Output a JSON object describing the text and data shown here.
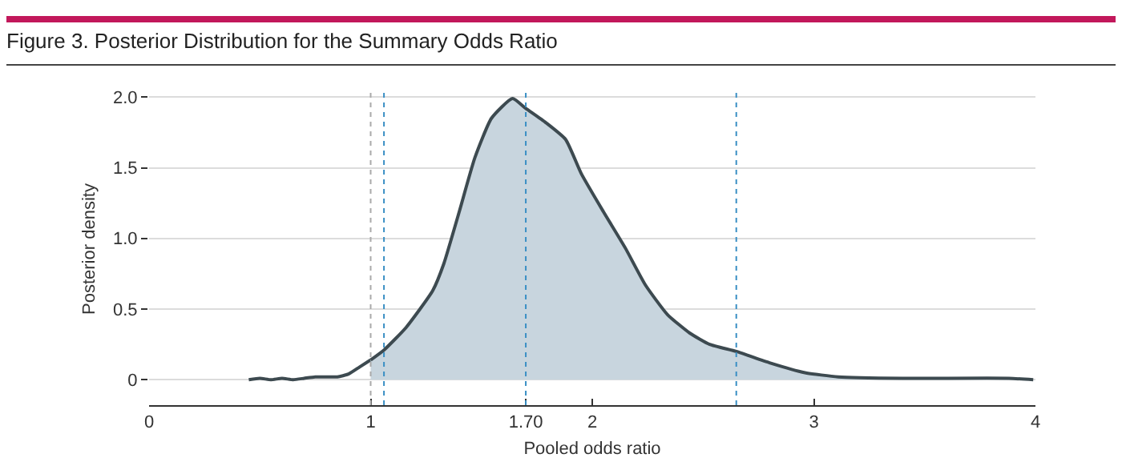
{
  "chart_data": {
    "type": "line",
    "title": "Figure 3. Posterior Distribution for the Summary Odds Ratio",
    "xlabel": "Pooled odds ratio",
    "ylabel": "Posterior density",
    "series": [
      {
        "color": "#3d4a50",
        "x": [
          0.45,
          0.5,
          0.55,
          0.6,
          0.65,
          0.7,
          0.75,
          0.8,
          0.85,
          0.9,
          0.95,
          1.0
        ],
        "values": [
          0,
          0.01,
          0,
          0.01,
          0,
          0.01,
          0.02,
          0.02,
          0.02,
          0.04,
          0.09,
          0.14
        ]
      },
      {
        "type": "area",
        "color": "#c8d5de",
        "x": [
          1.0,
          1.06,
          1.16,
          1.28,
          1.33,
          1.4,
          1.47,
          1.545,
          1.64,
          1.7,
          1.79,
          1.88,
          1.95,
          2.05,
          2.15,
          2.24,
          2.34,
          2.44,
          2.53,
          2.65,
          2.8,
          2.96,
          3.11,
          3.4,
          3.88,
          3.99
        ],
        "values": [
          0.14,
          0.21,
          0.37,
          0.63,
          0.82,
          1.19,
          1.57,
          1.85,
          1.99,
          1.92,
          1.82,
          1.7,
          1.46,
          1.19,
          0.93,
          0.67,
          0.46,
          0.33,
          0.25,
          0.2,
          0.12,
          0.05,
          0.02,
          0.01,
          0.01,
          0
        ]
      }
    ],
    "xlim": [
      0,
      4
    ],
    "xticks": [
      0,
      1,
      {
        "value": 1.7,
        "label": "1.70"
      },
      2,
      3,
      4
    ],
    "ylim": [
      -0.18,
      2.03
    ],
    "yticks": [
      0,
      0.5,
      {
        "value": 1,
        "label": "1.0"
      },
      1.5,
      {
        "value": 2,
        "label": "2.0"
      }
    ],
    "grid": "y",
    "ref_lines": [
      {
        "axis": "x",
        "value": 1,
        "color": "#aaaaaa",
        "line_style": "dotted"
      },
      {
        "axis": "x",
        "value": 1.06,
        "color": "#3a8fc4",
        "line_style": "dotted"
      },
      {
        "axis": "x",
        "value": 1.7,
        "color": "#3a8fc4",
        "line_style": "dotted"
      },
      {
        "axis": "x",
        "value": 2.65,
        "color": "#3a8fc4",
        "line_style": "dotted"
      }
    ]
  }
}
